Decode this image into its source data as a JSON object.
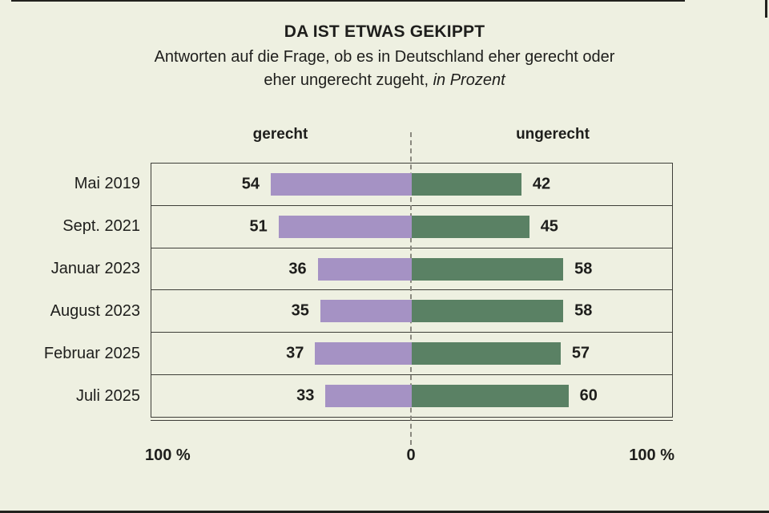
{
  "header": {
    "title": "DA IST ETWAS GEKIPPT",
    "subtitle_line1": "Antworten auf die Frage, ob es in Deutschland eher gerecht oder",
    "subtitle_line2": "eher ungerecht zugeht,",
    "subtitle_unit": "in Prozent"
  },
  "colors": {
    "background": "#eef0e1",
    "text": "#1e1e1c",
    "gerecht_purple": "#a592c4",
    "ungerecht_green": "#5a8164",
    "grid_line": "#3e3e38",
    "zero_dash_line": "#8a897f"
  },
  "chart_data": {
    "type": "bar",
    "variant": "diverging-horizontal",
    "title": "DA IST ETWAS GEKIPPT",
    "subtitle": "Antworten auf die Frage, ob es in Deutschland eher gerecht oder eher ungerecht zugeht, in Prozent",
    "unit": "percent",
    "categories": [
      "Mai 2019",
      "Sept. 2021",
      "Januar 2023",
      "August 2023",
      "Februar 2025",
      "Juli 2025"
    ],
    "series": [
      {
        "name": "gerecht",
        "direction": "left",
        "color": "#a592c4",
        "values": [
          54,
          51,
          36,
          35,
          37,
          33
        ]
      },
      {
        "name": "ungerecht",
        "direction": "right",
        "color": "#5a8164",
        "values": [
          42,
          45,
          58,
          58,
          57,
          60
        ]
      }
    ],
    "axis": {
      "left_label": "100 %",
      "center_label": "0",
      "right_label": "100 %",
      "xlim": [
        -100,
        100
      ],
      "grid": false,
      "zero_line": "dashed"
    },
    "legend_position": "above-columns"
  }
}
